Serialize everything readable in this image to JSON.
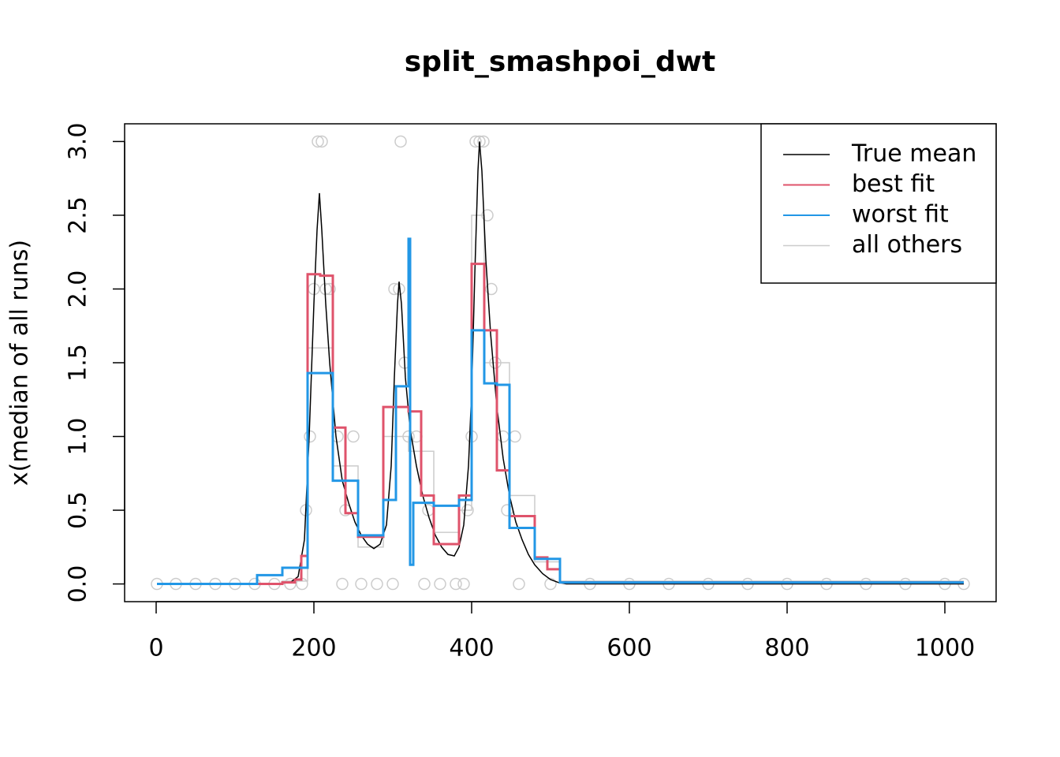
{
  "chart_data": {
    "type": "line",
    "title": "split_smashpoi_dwt",
    "y_label": "x(median of all runs)",
    "xlim": [
      -40,
      1065
    ],
    "ylim": [
      -0.12,
      3.12
    ],
    "xticks": [
      0,
      200,
      400,
      600,
      800,
      1000
    ],
    "yticks": [
      {
        "value": 0,
        "label": "0.0"
      },
      0.5,
      {
        "value": 1,
        "label": "1.0"
      },
      1.5,
      {
        "value": 2,
        "label": "2.0"
      },
      2.5,
      {
        "value": 3,
        "label": "3.0"
      }
    ],
    "legend": "top-right",
    "points": {
      "color": "#cccccc",
      "x": [
        1,
        25,
        50,
        75,
        100,
        125,
        150,
        170,
        185,
        190,
        195,
        200,
        205,
        210,
        215,
        220,
        230,
        236,
        240,
        250,
        260,
        280,
        300,
        302,
        308,
        310,
        315,
        320,
        330,
        340,
        345,
        360,
        380,
        390,
        395,
        400,
        405,
        410,
        415,
        420,
        425,
        430,
        440,
        445,
        455,
        460,
        500,
        550,
        600,
        650,
        700,
        750,
        800,
        850,
        900,
        950,
        1000,
        1024
      ],
      "y": [
        0,
        0,
        0,
        0,
        0,
        0,
        0,
        0,
        0,
        0.5,
        1,
        2,
        3,
        3,
        2,
        2,
        1,
        0,
        0.5,
        1,
        0,
        0,
        0,
        2,
        2,
        3,
        1.5,
        1,
        1,
        0,
        0.5,
        0,
        0,
        0,
        0.5,
        1,
        3,
        3,
        3,
        2.5,
        2,
        1.5,
        1,
        0.5,
        1,
        0,
        0,
        0,
        0,
        0,
        0,
        0,
        0,
        0,
        0,
        0,
        0,
        0
      ]
    },
    "series": [
      {
        "name": "True mean",
        "color": "#000000",
        "width": 1.5,
        "step": false,
        "x": [
          1,
          100,
          150,
          170,
          180,
          188,
          194,
          200,
          204,
          207,
          210,
          215,
          220,
          228,
          236,
          244,
          252,
          260,
          268,
          276,
          284,
          292,
          298,
          302,
          306,
          308,
          311,
          316,
          322,
          330,
          338,
          346,
          354,
          362,
          370,
          378,
          384,
          390,
          396,
          400,
          404,
          408,
          410,
          413,
          418,
          424,
          432,
          440,
          448,
          456,
          464,
          472,
          480,
          490,
          500,
          510,
          520,
          600,
          1024
        ],
        "values": [
          0,
          0,
          0,
          0.01,
          0.05,
          0.3,
          1.0,
          1.9,
          2.4,
          2.65,
          2.4,
          1.9,
          1.5,
          1.0,
          0.7,
          0.55,
          0.42,
          0.33,
          0.27,
          0.24,
          0.27,
          0.4,
          0.8,
          1.4,
          1.9,
          2.05,
          1.9,
          1.4,
          1.05,
          0.8,
          0.6,
          0.45,
          0.33,
          0.25,
          0.2,
          0.19,
          0.25,
          0.4,
          0.8,
          1.3,
          2.1,
          2.8,
          3.0,
          2.8,
          2.2,
          1.7,
          1.2,
          0.85,
          0.6,
          0.42,
          0.3,
          0.2,
          0.13,
          0.07,
          0.03,
          0.01,
          0,
          0,
          0
        ]
      },
      {
        "name": "best fit",
        "color": "#df536b",
        "width": 3,
        "step": true,
        "x": [
          1,
          160,
          176,
          184,
          192,
          208,
          224,
          240,
          256,
          288,
          304,
          320,
          336,
          352,
          384,
          400,
          416,
          432,
          448,
          480,
          496,
          512,
          1024
        ],
        "values": [
          0,
          0.01,
          0.03,
          0.19,
          2.1,
          2.09,
          1.06,
          0.48,
          0.32,
          1.2,
          1.2,
          1.17,
          0.6,
          0.27,
          0.6,
          2.17,
          1.72,
          0.77,
          0.46,
          0.18,
          0.1,
          0.01,
          0.01
        ]
      },
      {
        "name": "worst fit",
        "color": "#2297e6",
        "width": 3,
        "step": true,
        "x": [
          1,
          128,
          160,
          192,
          224,
          256,
          288,
          304,
          320,
          322,
          326,
          352,
          384,
          400,
          416,
          432,
          448,
          480,
          512,
          1024
        ],
        "values": [
          0,
          0.06,
          0.11,
          1.43,
          0.7,
          0.33,
          0.57,
          1.34,
          2.34,
          0.13,
          0.55,
          0.53,
          0.57,
          1.72,
          1.36,
          1.35,
          0.38,
          0.17,
          0.01,
          0.01
        ]
      },
      {
        "name": "all others",
        "color": "#cccccc",
        "width": 1.5,
        "step": true,
        "x": [
          1,
          160,
          192,
          224,
          256,
          288,
          320,
          352,
          384,
          400,
          416,
          448,
          480,
          512,
          1024
        ],
        "values": [
          0,
          0.02,
          1.6,
          0.8,
          0.25,
          1.0,
          0.9,
          0.35,
          0.5,
          2.5,
          1.5,
          0.6,
          0.15,
          0.02,
          0.02
        ]
      }
    ]
  }
}
